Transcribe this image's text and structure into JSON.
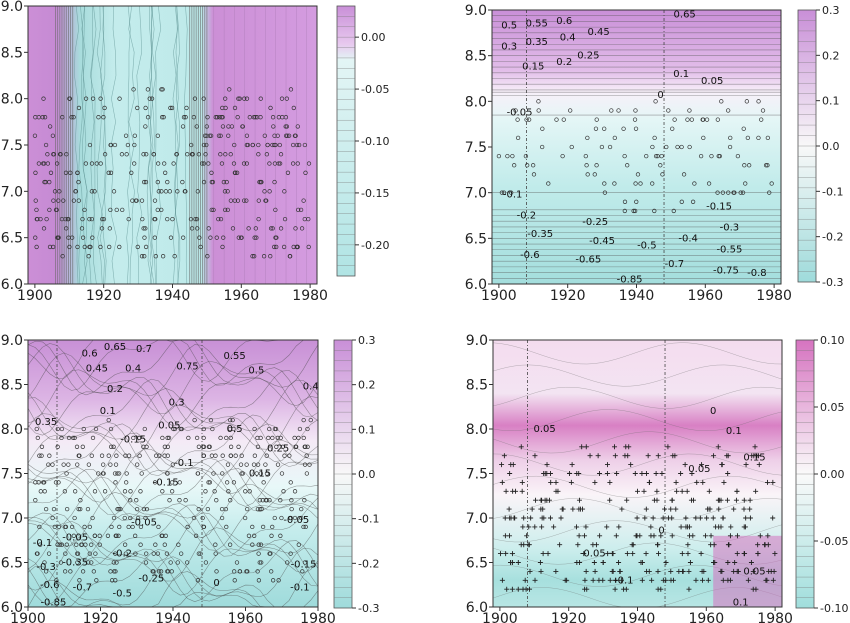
{
  "chart_data": [
    {
      "type": "heatmap",
      "panel": "top-left",
      "x_ticks": [
        1900,
        1920,
        1940,
        1960,
        1980
      ],
      "y_ticks": [
        "6.0",
        "6.5",
        "7.0",
        "7.5",
        "8.0",
        "8.5",
        "9.0"
      ],
      "xlim": [
        1898,
        1982
      ],
      "ylim": [
        6.0,
        9.0
      ],
      "colorbar_ticks": [
        "0.00",
        "-0.05",
        "-0.10",
        "-0.15",
        "-0.20"
      ],
      "colorbar_range": [
        -0.23,
        0.03
      ],
      "points": "circle",
      "contour_labels": [],
      "vlines": []
    },
    {
      "type": "heatmap",
      "panel": "top-right",
      "x_ticks": [
        1900,
        1920,
        1940,
        1960,
        1980
      ],
      "y_ticks": [
        "6.0",
        "6.5",
        "7.0",
        "7.5",
        "8.0",
        "8.5",
        "9.0"
      ],
      "xlim": [
        1898,
        1982
      ],
      "ylim": [
        6.0,
        9.0
      ],
      "colorbar_ticks": [
        "0.3",
        "0.2",
        "0.1",
        "0.0",
        "-0.1",
        "-0.2",
        "-0.3"
      ],
      "colorbar_range": [
        -0.3,
        0.3
      ],
      "points": "circle",
      "vlines": [
        1908,
        1948
      ],
      "contour_labels": [
        {
          "text": "0.5",
          "x": 1903,
          "y": 8.83
        },
        {
          "text": "0.55",
          "x": 1911,
          "y": 8.85
        },
        {
          "text": "0.6",
          "x": 1919,
          "y": 8.88
        },
        {
          "text": "0.65",
          "x": 1954,
          "y": 8.95
        },
        {
          "text": "0.45",
          "x": 1929,
          "y": 8.76
        },
        {
          "text": "0.4",
          "x": 1920,
          "y": 8.7
        },
        {
          "text": "0.35",
          "x": 1911,
          "y": 8.65
        },
        {
          "text": "0.3",
          "x": 1903,
          "y": 8.6
        },
        {
          "text": "0.25",
          "x": 1926,
          "y": 8.5
        },
        {
          "text": "0.2",
          "x": 1919,
          "y": 8.43
        },
        {
          "text": "0.15",
          "x": 1910,
          "y": 8.38
        },
        {
          "text": "0.1",
          "x": 1953,
          "y": 8.3
        },
        {
          "text": "0.05",
          "x": 1962,
          "y": 8.22
        },
        {
          "text": "0",
          "x": 1947,
          "y": 8.07
        },
        {
          "text": "-0.05",
          "x": 1906,
          "y": 7.88
        },
        {
          "text": "-0.1",
          "x": 1904,
          "y": 6.98
        },
        {
          "text": "-0.15",
          "x": 1964,
          "y": 6.85
        },
        {
          "text": "-0.2",
          "x": 1908,
          "y": 6.75
        },
        {
          "text": "-0.25",
          "x": 1928,
          "y": 6.68
        },
        {
          "text": "-0.3",
          "x": 1967,
          "y": 6.62
        },
        {
          "text": "-0.35",
          "x": 1912,
          "y": 6.55
        },
        {
          "text": "-0.4",
          "x": 1955,
          "y": 6.5
        },
        {
          "text": "-0.45",
          "x": 1930,
          "y": 6.47
        },
        {
          "text": "-0.5",
          "x": 1943,
          "y": 6.42
        },
        {
          "text": "-0.55",
          "x": 1967,
          "y": 6.38
        },
        {
          "text": "-0.6",
          "x": 1909,
          "y": 6.32
        },
        {
          "text": "-0.65",
          "x": 1926,
          "y": 6.27
        },
        {
          "text": "-0.7",
          "x": 1951,
          "y": 6.22
        },
        {
          "text": "-0.75",
          "x": 1966,
          "y": 6.15
        },
        {
          "text": "-0.8",
          "x": 1975,
          "y": 6.12
        },
        {
          "text": "-0.85",
          "x": 1938,
          "y": 6.05
        }
      ]
    },
    {
      "type": "heatmap",
      "panel": "bottom-left",
      "x_ticks": [
        1900,
        1920,
        1940,
        1960,
        1980
      ],
      "y_ticks": [
        "6.0",
        "6.5",
        "7.0",
        "7.5",
        "8.0",
        "8.5",
        "9.0"
      ],
      "xlim": [
        1900,
        1980
      ],
      "ylim": [
        6.0,
        9.0
      ],
      "colorbar_ticks": [
        "0.3",
        "0.2",
        "0.1",
        "0.0",
        "-0.1",
        "-0.2",
        "-0.3"
      ],
      "colorbar_range": [
        -0.3,
        0.3
      ],
      "points": "circle",
      "vlines": [
        1908,
        1948
      ],
      "contour_labels": [
        {
          "text": "0.6",
          "x": 1917,
          "y": 8.85
        },
        {
          "text": "0.65",
          "x": 1924,
          "y": 8.92
        },
        {
          "text": "0.7",
          "x": 1932,
          "y": 8.9
        },
        {
          "text": "0.55",
          "x": 1957,
          "y": 8.82
        },
        {
          "text": "0.45",
          "x": 1919,
          "y": 8.68
        },
        {
          "text": "0.4",
          "x": 1929,
          "y": 8.68
        },
        {
          "text": "0.75",
          "x": 1944,
          "y": 8.7
        },
        {
          "text": "0.5",
          "x": 1963,
          "y": 8.66
        },
        {
          "text": "0.4",
          "x": 1978,
          "y": 8.48
        },
        {
          "text": "0.2",
          "x": 1924,
          "y": 8.45
        },
        {
          "text": "0.3",
          "x": 1941,
          "y": 8.3
        },
        {
          "text": "0.35",
          "x": 1905,
          "y": 8.08
        },
        {
          "text": "0.1",
          "x": 1922,
          "y": 8.2
        },
        {
          "text": "0.05",
          "x": 1939,
          "y": 8.04
        },
        {
          "text": "-0.15",
          "x": 1929,
          "y": 7.88
        },
        {
          "text": "0.5",
          "x": 1957,
          "y": 8.0
        },
        {
          "text": "0.25",
          "x": 1969,
          "y": 7.78
        },
        {
          "text": "0.15",
          "x": 1964,
          "y": 7.5
        },
        {
          "text": "-0.1",
          "x": 1943,
          "y": 7.62
        },
        {
          "text": "-0.15",
          "x": 1938,
          "y": 7.4
        },
        {
          "text": "-0.05",
          "x": 1932,
          "y": 6.95
        },
        {
          "text": "-0.05",
          "x": 1974,
          "y": 6.98
        },
        {
          "text": "-0.1",
          "x": 1904,
          "y": 6.72
        },
        {
          "text": "-0.05",
          "x": 1913,
          "y": 6.78
        },
        {
          "text": "-0.3",
          "x": 1905,
          "y": 6.45
        },
        {
          "text": "-0.35",
          "x": 1913,
          "y": 6.5
        },
        {
          "text": "-0.2",
          "x": 1926,
          "y": 6.6
        },
        {
          "text": "-0.6",
          "x": 1906,
          "y": 6.25
        },
        {
          "text": "-0.7",
          "x": 1915,
          "y": 6.22
        },
        {
          "text": "-0.25",
          "x": 1934,
          "y": 6.32
        },
        {
          "text": "-0.85",
          "x": 1907,
          "y": 6.05
        },
        {
          "text": "-0.5",
          "x": 1926,
          "y": 6.15
        },
        {
          "text": "0",
          "x": 1952,
          "y": 6.27
        },
        {
          "text": "-0.15",
          "x": 1976,
          "y": 6.48
        },
        {
          "text": "-0.1",
          "x": 1975,
          "y": 6.22
        }
      ]
    },
    {
      "type": "heatmap",
      "panel": "bottom-right",
      "x_ticks": [
        1900,
        1920,
        1940,
        1960,
        1980
      ],
      "y_ticks": [
        "6.0",
        "6.5",
        "7.0",
        "7.5",
        "8.0",
        "8.5",
        "9.0"
      ],
      "xlim": [
        1898,
        1982
      ],
      "ylim": [
        6.0,
        9.0
      ],
      "colorbar_ticks": [
        "0.10",
        "0.05",
        "0.00",
        "-0.05",
        "-0.10"
      ],
      "colorbar_range": [
        -0.1,
        0.1
      ],
      "points": "plus",
      "vlines": [
        1908,
        1948
      ],
      "contour_labels": [
        {
          "text": "0",
          "x": 1962,
          "y": 8.2
        },
        {
          "text": "0.05",
          "x": 1913,
          "y": 8.0
        },
        {
          "text": "0.1",
          "x": 1968,
          "y": 7.98
        },
        {
          "text": "0.05",
          "x": 1958,
          "y": 7.55
        },
        {
          "text": "0.15",
          "x": 1974,
          "y": 7.68
        },
        {
          "text": "0",
          "x": 1947,
          "y": 6.86
        },
        {
          "text": "-0.05",
          "x": 1927,
          "y": 6.6
        },
        {
          "text": "-0.1",
          "x": 1936,
          "y": 6.3
        },
        {
          "text": "0.05",
          "x": 1974,
          "y": 6.4
        },
        {
          "text": "0.1",
          "x": 1970,
          "y": 6.05
        }
      ]
    }
  ]
}
